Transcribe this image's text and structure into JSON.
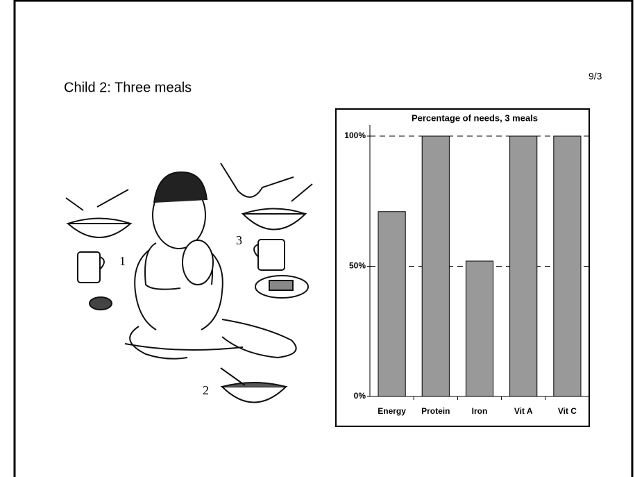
{
  "slide": {
    "title": "Child 2: Three meals",
    "page_number": "9/3"
  },
  "illustration": {
    "labels": [
      "1",
      "2",
      "3"
    ]
  },
  "chart_data": {
    "type": "bar",
    "title": "Percentage of needs, 3 meals",
    "categories": [
      "Energy",
      "Protein",
      "Iron",
      "Vit A",
      "Vit C"
    ],
    "values": [
      71,
      100,
      52,
      100,
      100
    ],
    "color": "#999999",
    "ylim": [
      0,
      100
    ],
    "yticks": [
      {
        "value": 0,
        "label": "0%"
      },
      {
        "value": 50,
        "label": "50%"
      },
      {
        "value": 100,
        "label": "100%"
      }
    ],
    "grid": true
  }
}
